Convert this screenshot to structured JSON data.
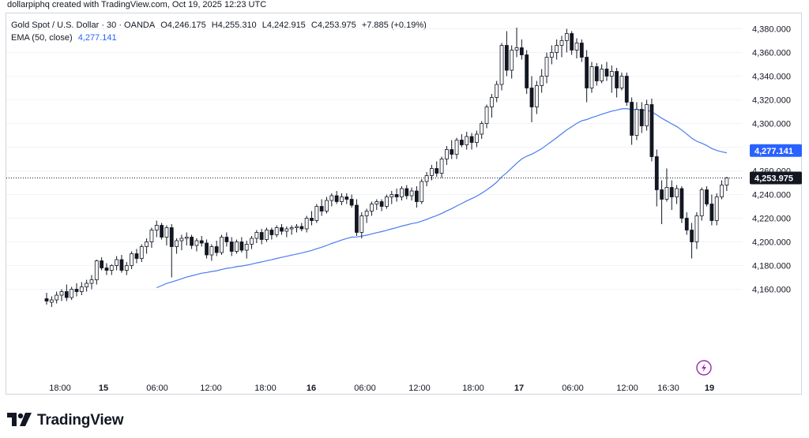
{
  "header": {
    "credit": "dollarpiphq created with TradingView.com, Oct 19, 2025 12:23 UTC"
  },
  "legend": {
    "symbol": "Gold Spot / U.S. Dollar · 30 · OANDA",
    "open": "O4,246.175",
    "high": "H4,255.310",
    "low": "L4,242.915",
    "close": "C4,253.975",
    "change": "+7.885 (+0.19%)",
    "ema_label": "EMA (50, close)",
    "ema_value": "4,277.141"
  },
  "colors": {
    "ema": "#4a7cf0",
    "ema_badge": "#2962ff",
    "price_badge": "#131722",
    "candle_up": "#ffffff",
    "candle_down": "#131722",
    "grid": "#f0f3fa",
    "axis_text": "#131722"
  },
  "chart_data": {
    "type": "candlestick",
    "interval": "30",
    "source": "OANDA",
    "ylim": [
      4150,
      4385
    ],
    "y_ticks": [
      "4,160.000",
      "4,180.000",
      "4,200.000",
      "4,220.000",
      "4,240.000",
      "4,260.000",
      "4,280.000",
      "4,300.000",
      "4,320.000",
      "4,340.000",
      "4,360.000",
      "4,380.000"
    ],
    "y_tick_values": [
      4160,
      4180,
      4200,
      4220,
      4240,
      4260,
      4280,
      4300,
      4320,
      4340,
      4360,
      4380
    ],
    "x_ticks": [
      "18:00",
      "15",
      "06:00",
      "12:00",
      "18:00",
      "16",
      "06:00",
      "12:00",
      "18:00",
      "17",
      "06:00",
      "12:00",
      "16:30",
      "19"
    ],
    "x_ticks_bold": [
      false,
      true,
      false,
      false,
      false,
      true,
      false,
      false,
      false,
      true,
      false,
      false,
      false,
      true
    ],
    "last_price": 4253.975,
    "last_price_label": "4,253.975",
    "ema_period": 50,
    "ema_last": 4277.141,
    "ema_last_label": "4,277.141",
    "candles": [
      [
        4152,
        4157,
        4147,
        4150
      ],
      [
        4149,
        4154,
        4145,
        4151
      ],
      [
        4151,
        4158,
        4148,
        4155
      ],
      [
        4155,
        4160,
        4150,
        4158
      ],
      [
        4158,
        4164,
        4150,
        4153
      ],
      [
        4153,
        4162,
        4151,
        4160
      ],
      [
        4160,
        4165,
        4154,
        4158
      ],
      [
        4158,
        4166,
        4155,
        4162
      ],
      [
        4162,
        4168,
        4158,
        4165
      ],
      [
        4165,
        4172,
        4160,
        4168
      ],
      [
        4168,
        4185,
        4164,
        4184
      ],
      [
        4184,
        4187,
        4176,
        4178
      ],
      [
        4178,
        4182,
        4172,
        4176
      ],
      [
        4176,
        4181,
        4172,
        4180
      ],
      [
        4180,
        4188,
        4176,
        4185
      ],
      [
        4185,
        4189,
        4174,
        4176
      ],
      [
        4176,
        4183,
        4172,
        4180
      ],
      [
        4180,
        4192,
        4177,
        4190
      ],
      [
        4190,
        4194,
        4182,
        4186
      ],
      [
        4186,
        4198,
        4183,
        4196
      ],
      [
        4196,
        4203,
        4190,
        4200
      ],
      [
        4200,
        4212,
        4195,
        4210
      ],
      [
        4210,
        4218,
        4204,
        4214
      ],
      [
        4214,
        4216,
        4202,
        4204
      ],
      [
        4204,
        4214,
        4197,
        4212
      ],
      [
        4212,
        4215,
        4170,
        4196
      ],
      [
        4196,
        4203,
        4190,
        4201
      ],
      [
        4201,
        4206,
        4193,
        4203
      ],
      [
        4203,
        4208,
        4197,
        4204
      ],
      [
        4204,
        4206,
        4194,
        4197
      ],
      [
        4197,
        4203,
        4192,
        4201
      ],
      [
        4201,
        4205,
        4196,
        4199
      ],
      [
        4199,
        4202,
        4186,
        4189
      ],
      [
        4189,
        4198,
        4184,
        4196
      ],
      [
        4196,
        4201,
        4188,
        4191
      ],
      [
        4191,
        4206,
        4189,
        4204
      ],
      [
        4204,
        4208,
        4196,
        4200
      ],
      [
        4200,
        4204,
        4188,
        4192
      ],
      [
        4192,
        4202,
        4190,
        4200
      ],
      [
        4200,
        4204,
        4191,
        4193
      ],
      [
        4193,
        4201,
        4186,
        4198
      ],
      [
        4198,
        4205,
        4194,
        4203
      ],
      [
        4203,
        4210,
        4199,
        4208
      ],
      [
        4208,
        4211,
        4198,
        4202
      ],
      [
        4202,
        4212,
        4200,
        4210
      ],
      [
        4210,
        4212,
        4202,
        4206
      ],
      [
        4206,
        4214,
        4204,
        4212
      ],
      [
        4212,
        4215,
        4206,
        4209
      ],
      [
        4209,
        4213,
        4204,
        4211
      ],
      [
        4211,
        4214,
        4206,
        4212
      ],
      [
        4212,
        4215,
        4208,
        4213
      ],
      [
        4213,
        4216,
        4209,
        4211
      ],
      [
        4211,
        4222,
        4208,
        4220
      ],
      [
        4220,
        4226,
        4214,
        4218
      ],
      [
        4218,
        4232,
        4216,
        4230
      ],
      [
        4230,
        4236,
        4222,
        4226
      ],
      [
        4226,
        4238,
        4224,
        4235
      ],
      [
        4235,
        4241,
        4230,
        4239
      ],
      [
        4239,
        4243,
        4232,
        4234
      ],
      [
        4234,
        4241,
        4231,
        4238
      ],
      [
        4238,
        4241,
        4232,
        4236
      ],
      [
        4236,
        4240,
        4229,
        4231
      ],
      [
        4231,
        4236,
        4205,
        4208
      ],
      [
        4208,
        4225,
        4203,
        4222
      ],
      [
        4222,
        4228,
        4216,
        4226
      ],
      [
        4226,
        4234,
        4222,
        4232
      ],
      [
        4232,
        4236,
        4227,
        4234
      ],
      [
        4234,
        4236,
        4226,
        4230
      ],
      [
        4230,
        4240,
        4228,
        4238
      ],
      [
        4238,
        4243,
        4232,
        4240
      ],
      [
        4240,
        4245,
        4234,
        4238
      ],
      [
        4238,
        4247,
        4235,
        4245
      ],
      [
        4245,
        4248,
        4236,
        4239
      ],
      [
        4239,
        4246,
        4235,
        4243
      ],
      [
        4243,
        4247,
        4229,
        4234
      ],
      [
        4234,
        4253,
        4232,
        4251
      ],
      [
        4251,
        4259,
        4247,
        4256
      ],
      [
        4256,
        4265,
        4252,
        4262
      ],
      [
        4262,
        4268,
        4255,
        4258
      ],
      [
        4258,
        4272,
        4254,
        4270
      ],
      [
        4270,
        4281,
        4265,
        4278
      ],
      [
        4278,
        4286,
        4270,
        4274
      ],
      [
        4274,
        4288,
        4270,
        4286
      ],
      [
        4286,
        4291,
        4280,
        4282
      ],
      [
        4282,
        4293,
        4278,
        4289
      ],
      [
        4289,
        4292,
        4278,
        4284
      ],
      [
        4284,
        4294,
        4280,
        4291
      ],
      [
        4291,
        4302,
        4287,
        4300
      ],
      [
        4300,
        4316,
        4296,
        4314
      ],
      [
        4314,
        4325,
        4305,
        4322
      ],
      [
        4322,
        4336,
        4318,
        4333
      ],
      [
        4333,
        4368,
        4328,
        4366
      ],
      [
        4366,
        4378,
        4340,
        4345
      ],
      [
        4345,
        4366,
        4338,
        4362
      ],
      [
        4362,
        4381,
        4356,
        4364
      ],
      [
        4364,
        4371,
        4354,
        4358
      ],
      [
        4358,
        4362,
        4325,
        4330
      ],
      [
        4330,
        4340,
        4301,
        4314
      ],
      [
        4314,
        4336,
        4308,
        4332
      ],
      [
        4332,
        4346,
        4326,
        4340
      ],
      [
        4340,
        4360,
        4334,
        4356
      ],
      [
        4356,
        4366,
        4350,
        4360
      ],
      [
        4360,
        4371,
        4354,
        4366
      ],
      [
        4366,
        4374,
        4356,
        4370
      ],
      [
        4370,
        4380,
        4360,
        4376
      ],
      [
        4376,
        4378,
        4358,
        4362
      ],
      [
        4362,
        4372,
        4355,
        4368
      ],
      [
        4368,
        4371,
        4352,
        4356
      ],
      [
        4356,
        4362,
        4318,
        4330
      ],
      [
        4330,
        4352,
        4326,
        4348
      ],
      [
        4348,
        4351,
        4332,
        4336
      ],
      [
        4336,
        4350,
        4334,
        4346
      ],
      [
        4346,
        4352,
        4336,
        4340
      ],
      [
        4340,
        4349,
        4326,
        4344
      ],
      [
        4344,
        4347,
        4322,
        4330
      ],
      [
        4330,
        4343,
        4328,
        4340
      ],
      [
        4340,
        4343,
        4315,
        4318
      ],
      [
        4318,
        4322,
        4282,
        4290
      ],
      [
        4290,
        4318,
        4286,
        4312
      ],
      [
        4312,
        4318,
        4292,
        4298
      ],
      [
        4298,
        4320,
        4294,
        4316
      ],
      [
        4316,
        4321,
        4268,
        4272
      ],
      [
        4272,
        4278,
        4230,
        4244
      ],
      [
        4244,
        4252,
        4215,
        4236
      ],
      [
        4236,
        4262,
        4234,
        4246
      ],
      [
        4246,
        4252,
        4227,
        4238
      ],
      [
        4238,
        4248,
        4232,
        4245
      ],
      [
        4245,
        4247,
        4216,
        4220
      ],
      [
        4220,
        4225,
        4206,
        4210
      ],
      [
        4210,
        4216,
        4186,
        4200
      ],
      [
        4200,
        4225,
        4194,
        4222
      ],
      [
        4222,
        4246,
        4218,
        4244
      ],
      [
        4244,
        4247,
        4230,
        4232
      ],
      [
        4232,
        4240,
        4214,
        4218
      ],
      [
        4218,
        4241,
        4214,
        4238
      ],
      [
        4238,
        4252,
        4236,
        4248
      ],
      [
        4248,
        4255,
        4243,
        4254
      ]
    ]
  }
}
